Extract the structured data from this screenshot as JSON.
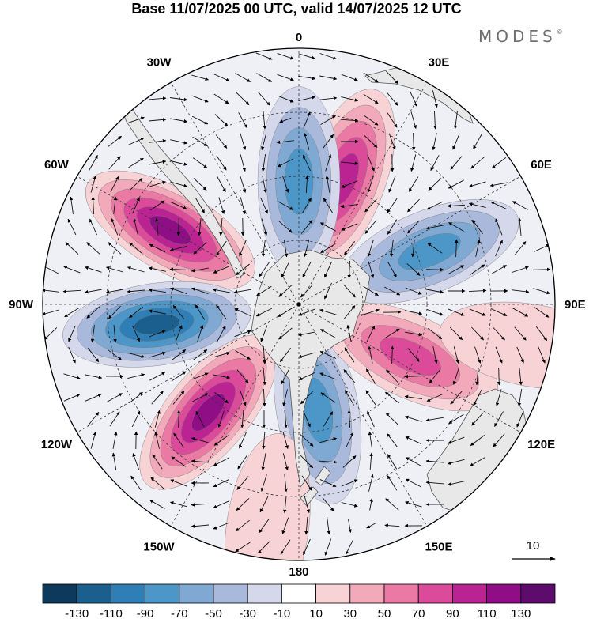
{
  "header": {
    "title": "Base 11/07/2025 00 UTC, valid 14/07/2025 12 UTC",
    "brand": "MODES",
    "brand_mark": "©"
  },
  "map": {
    "projection": "polar-stereographic",
    "hemisphere": "south",
    "longitude_labels": [
      "0",
      "30E",
      "60E",
      "90E",
      "120E",
      "150E",
      "180",
      "150W",
      "120W",
      "90W",
      "60W",
      "30W"
    ],
    "reference_vector": {
      "label": "10",
      "magnitude": 10
    },
    "colors": {
      "land_fill": "#e8e8e8",
      "coast_line": "#555555"
    },
    "features": [
      {
        "name": "positive-anomaly",
        "lon": 20,
        "colat": 0.52,
        "value": 95
      },
      {
        "name": "negative-anomaly",
        "lon": 0,
        "colat": 0.48,
        "value": -75
      },
      {
        "name": "positive-anomaly",
        "lon": -60,
        "colat": 0.58,
        "value": 125
      },
      {
        "name": "negative-anomaly",
        "lon": -98,
        "colat": 0.56,
        "value": -125
      },
      {
        "name": "positive-anomaly",
        "lon": -140,
        "colat": 0.55,
        "value": 115
      },
      {
        "name": "negative-anomaly",
        "lon": 170,
        "colat": 0.42,
        "value": -85
      },
      {
        "name": "positive-anomaly",
        "lon": 115,
        "colat": 0.48,
        "value": 85
      },
      {
        "name": "negative-anomaly",
        "lon": 68,
        "colat": 0.55,
        "value": -75
      },
      {
        "name": "weak-positive",
        "lon": 100,
        "colat": 0.93,
        "value": 20
      },
      {
        "name": "weak-positive",
        "lon": -172,
        "colat": 0.88,
        "value": 25
      }
    ]
  },
  "colorbar": {
    "tick_labels": [
      "-130",
      "-110",
      "-90",
      "-70",
      "-50",
      "-30",
      "-10",
      "10",
      "30",
      "50",
      "70",
      "90",
      "110",
      "130"
    ],
    "colors": [
      "#0d3a5c",
      "#1a5f8e",
      "#2f7fb6",
      "#4d97c8",
      "#7fa9d3",
      "#a8b9dc",
      "#d5d8ea",
      "#ffffff",
      "#f7d3d6",
      "#f2aabb",
      "#ea79a4",
      "#db4b9a",
      "#bb2393",
      "#8f0e86",
      "#5e0b6e"
    ]
  }
}
